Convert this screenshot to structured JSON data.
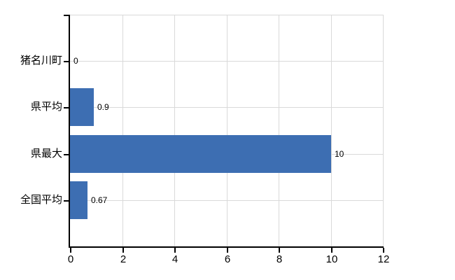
{
  "chart_data": {
    "type": "bar",
    "orientation": "horizontal",
    "title": "",
    "xlabel": "",
    "ylabel": "",
    "categories": [
      "猪名川町",
      "県平均",
      "県最大",
      "全国平均"
    ],
    "values": [
      0,
      0.9,
      10,
      0.67
    ],
    "value_labels": [
      "0",
      "0.9",
      "10",
      "0.67"
    ],
    "xlim": [
      0,
      12
    ],
    "x_tick_values": [
      0,
      2,
      4,
      6,
      8,
      10,
      12
    ],
    "x_tick_labels": [
      "0",
      "2",
      "4",
      "6",
      "8",
      "10",
      "12"
    ],
    "grid": true,
    "legend": false,
    "colors": {
      "bar": "#3d6eb2",
      "grid": "#d9d9d9",
      "axis": "#000000",
      "text": "#000000",
      "background": "#ffffff"
    }
  }
}
